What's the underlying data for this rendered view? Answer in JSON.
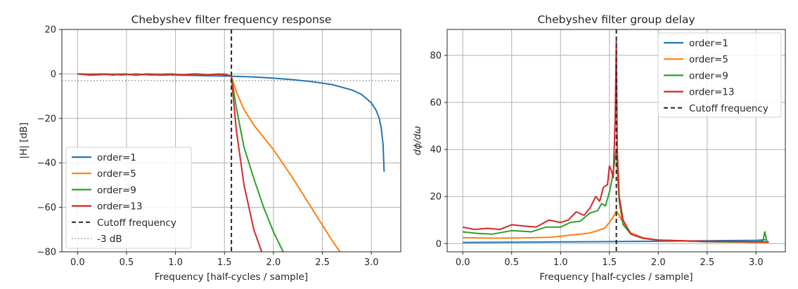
{
  "chart_data": [
    {
      "type": "line",
      "title": "Chebyshev filter frequency response",
      "xlabel": "Frequency [half-cycles / sample]",
      "ylabel": "|H| [dB]",
      "xlim": [
        -0.16,
        3.3
      ],
      "ylim": [
        -80,
        20
      ],
      "xticks": [
        "0.0",
        "0.5",
        "1.0",
        "1.5",
        "2.0",
        "2.5",
        "3.0"
      ],
      "yticks": [
        "20",
        "0",
        "−20",
        "−40",
        "−60",
        "−80"
      ],
      "grid": true,
      "legend_position": "lower-left",
      "cutoff_x": 1.5708,
      "series": [
        {
          "name": "order=1",
          "color": "#1f77b4",
          "x": [
            0,
            0.4,
            0.8,
            1.2,
            1.5708,
            1.8,
            2.0,
            2.2,
            2.4,
            2.6,
            2.8,
            2.9,
            3.0,
            3.05,
            3.08,
            3.1,
            3.12,
            3.13
          ],
          "y": [
            0,
            -0.2,
            -0.4,
            -0.7,
            -1.0,
            -1.4,
            -1.9,
            -2.6,
            -3.5,
            -4.8,
            -7.2,
            -9.2,
            -13,
            -16.5,
            -20,
            -24,
            -32,
            -44
          ]
        },
        {
          "name": "order=5",
          "color": "#ff7f0e",
          "x": [
            0,
            0.2,
            0.4,
            0.6,
            0.8,
            1.0,
            1.2,
            1.4,
            1.5,
            1.5708,
            1.62,
            1.7,
            1.8,
            2.0,
            2.2,
            2.4,
            2.6,
            2.68
          ],
          "y": [
            0,
            -0.5,
            0,
            -0.5,
            0,
            -0.5,
            0,
            -0.5,
            -0.2,
            -1.0,
            -8,
            -16,
            -23,
            -34,
            -47,
            -61,
            -75,
            -80
          ]
        },
        {
          "name": "order=9",
          "color": "#2ca02c",
          "x": [
            0,
            0.15,
            0.3,
            0.45,
            0.6,
            0.75,
            0.9,
            1.05,
            1.2,
            1.35,
            1.5,
            1.5708,
            1.62,
            1.7,
            1.8,
            1.9,
            2.0,
            2.1
          ],
          "y": [
            0,
            -0.5,
            0,
            -0.5,
            0,
            -0.5,
            0,
            -0.5,
            0,
            -0.5,
            0,
            -1.0,
            -15,
            -33,
            -47,
            -60,
            -71,
            -80
          ]
        },
        {
          "name": "order=13",
          "color": "#d62728",
          "x": [
            0,
            0.12,
            0.24,
            0.36,
            0.48,
            0.6,
            0.72,
            0.84,
            0.96,
            1.08,
            1.2,
            1.32,
            1.44,
            1.52,
            1.5708,
            1.62,
            1.7,
            1.8,
            1.88
          ],
          "y": [
            0,
            -0.5,
            0,
            -0.5,
            0,
            -0.5,
            0,
            -0.5,
            0,
            -0.5,
            0,
            -0.5,
            0,
            -0.5,
            -1.0,
            -25,
            -50,
            -70,
            -80
          ]
        }
      ],
      "legend": [
        {
          "label": "order=1",
          "color": "#1f77b4",
          "style": "solid"
        },
        {
          "label": "order=5",
          "color": "#ff7f0e",
          "style": "solid"
        },
        {
          "label": "order=9",
          "color": "#2ca02c",
          "style": "solid"
        },
        {
          "label": "order=13",
          "color": "#d62728",
          "style": "solid"
        },
        {
          "label": "Cutoff frequency",
          "color": "#262626",
          "style": "dashed"
        },
        {
          "label": "-3 dB",
          "color": "#999999",
          "style": "dotted"
        }
      ],
      "reference_lines": [
        {
          "label": "-3 dB",
          "y": -3
        }
      ]
    },
    {
      "type": "line",
      "title": "Chebyshev filter group delay",
      "xlabel": "Frequency [half-cycles / sample]",
      "ylabel": "dϕ/dω",
      "xlim": [
        -0.16,
        3.3
      ],
      "ylim": [
        -3.5,
        91
      ],
      "xticks": [
        "0.0",
        "0.5",
        "1.0",
        "1.5",
        "2.0",
        "2.5",
        "3.0"
      ],
      "yticks": [
        "80",
        "60",
        "40",
        "20",
        "0"
      ],
      "grid": true,
      "legend_position": "upper-right",
      "cutoff_x": 1.5708,
      "series": [
        {
          "name": "order=1",
          "color": "#1f77b4",
          "x": [
            0,
            1.0,
            2.0,
            3.0,
            3.1
          ],
          "y": [
            0.5,
            0.7,
            1.0,
            1.4,
            1.6
          ]
        },
        {
          "name": "order=5",
          "color": "#ff7f0e",
          "x": [
            0,
            0.3,
            0.6,
            0.9,
            1.1,
            1.3,
            1.45,
            1.5,
            1.55,
            1.5708,
            1.6,
            1.65,
            1.72,
            1.85,
            2.0,
            2.5,
            3.0,
            3.13
          ],
          "y": [
            2.5,
            2.3,
            2.4,
            2.7,
            3.6,
            4.5,
            6.5,
            9,
            12,
            14,
            12,
            8,
            4.5,
            2.4,
            1.5,
            0.9,
            0.6,
            0.5
          ]
        },
        {
          "name": "order=9",
          "color": "#2ca02c",
          "x": [
            0,
            0.15,
            0.3,
            0.5,
            0.7,
            0.85,
            1.0,
            1.1,
            1.2,
            1.3,
            1.38,
            1.42,
            1.46,
            1.5,
            1.53,
            1.5708,
            1.6,
            1.64,
            1.72,
            1.85,
            2.0,
            2.5,
            3.0,
            3.07,
            3.09,
            3.11,
            3.13
          ],
          "y": [
            5,
            4.3,
            4.0,
            5.5,
            5.0,
            7.0,
            7.0,
            9.0,
            9.5,
            13,
            14,
            17,
            16,
            22,
            28,
            40,
            18,
            8,
            4,
            2.2,
            1.5,
            0.8,
            0.6,
            1.0,
            5.0,
            1.0,
            0.6
          ]
        },
        {
          "name": "order=13",
          "color": "#d62728",
          "x": [
            0,
            0.12,
            0.25,
            0.38,
            0.5,
            0.62,
            0.75,
            0.88,
            1.0,
            1.08,
            1.16,
            1.24,
            1.3,
            1.36,
            1.4,
            1.44,
            1.48,
            1.5,
            1.52,
            1.54,
            1.56,
            1.5708,
            1.58,
            1.6,
            1.64,
            1.72,
            1.85,
            2.0,
            2.5,
            3.0,
            3.13
          ],
          "y": [
            7,
            6,
            6.5,
            6,
            8,
            7.5,
            7,
            10,
            9,
            10,
            13.5,
            12,
            15,
            20,
            18,
            24,
            25,
            33,
            31,
            28,
            55,
            86,
            40,
            20,
            10,
            4,
            2.2,
            1.5,
            0.9,
            0.7,
            0.6
          ]
        }
      ],
      "legend": [
        {
          "label": "order=1",
          "color": "#1f77b4",
          "style": "solid"
        },
        {
          "label": "order=5",
          "color": "#ff7f0e",
          "style": "solid"
        },
        {
          "label": "order=9",
          "color": "#2ca02c",
          "style": "solid"
        },
        {
          "label": "order=13",
          "color": "#d62728",
          "style": "solid"
        },
        {
          "label": "Cutoff frequency",
          "color": "#262626",
          "style": "dashed"
        }
      ]
    }
  ]
}
